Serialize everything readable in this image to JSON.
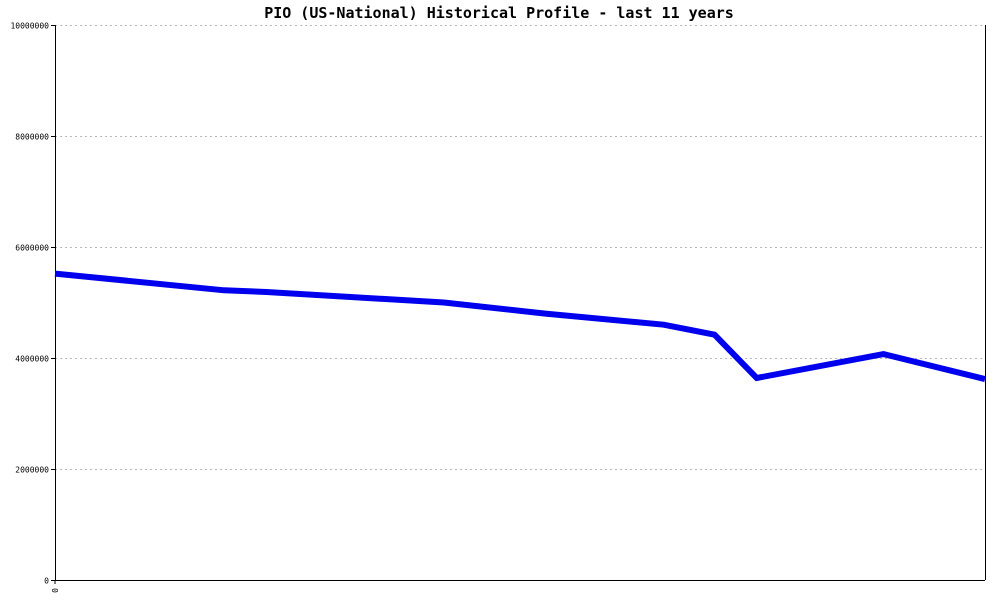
{
  "chart_data": {
    "type": "line",
    "title": "PIO (US-National) Historical Profile - last 11 years",
    "xlabel": "",
    "ylabel": "",
    "ylim": [
      0,
      10000000
    ],
    "yticks": [
      "0",
      "2000000",
      "4000000",
      "6000000",
      "8000000",
      "10000000"
    ],
    "xticks": [
      "0"
    ],
    "grid": true,
    "series": [
      {
        "color": "#0000ee",
        "x": [
          0,
          2,
          2.5,
          4.6,
          5.8,
          7.2,
          7.8,
          8.3,
          9.8,
          11
        ],
        "values": [
          5520000,
          5220000,
          5190000,
          5000000,
          4800000,
          4600000,
          4420000,
          3640000,
          4070000,
          3620000
        ]
      }
    ]
  }
}
